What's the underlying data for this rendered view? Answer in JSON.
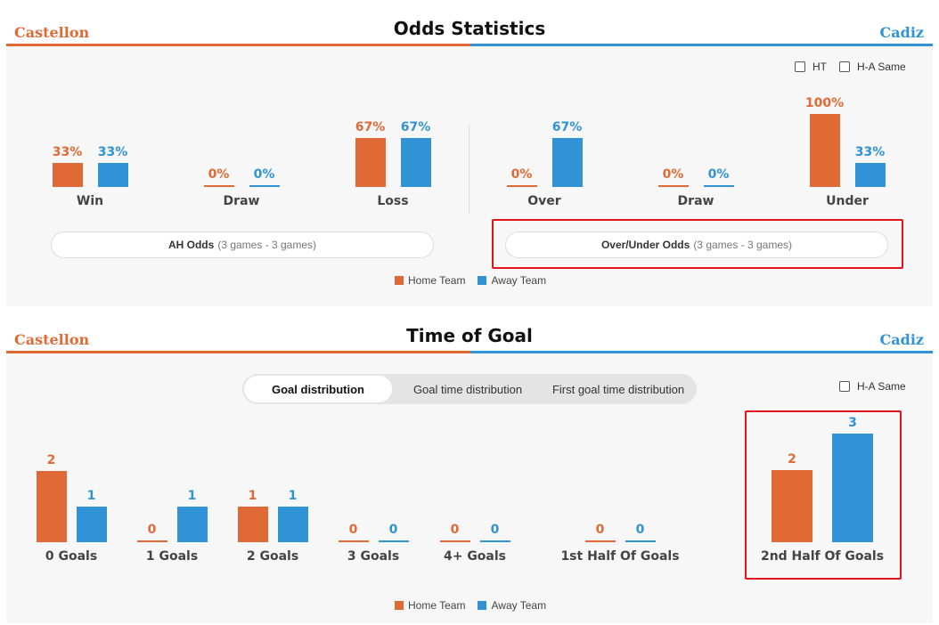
{
  "odds": {
    "home_team": "Castellon",
    "title": "Odds Statistics",
    "away_team": "Cadiz",
    "checkbox_ht": "HT",
    "checkbox_ha": "H-A Same",
    "ah_groups": [
      {
        "label": "Win",
        "home": "33%",
        "away": "33%",
        "home_pct": 33,
        "away_pct": 33
      },
      {
        "label": "Draw",
        "home": "0%",
        "away": "0%",
        "home_pct": 0,
        "away_pct": 0
      },
      {
        "label": "Loss",
        "home": "67%",
        "away": "67%",
        "home_pct": 67,
        "away_pct": 67
      }
    ],
    "ou_groups": [
      {
        "label": "Over",
        "home": "0%",
        "away": "67%",
        "home_pct": 0,
        "away_pct": 67
      },
      {
        "label": "Draw",
        "home": "0%",
        "away": "0%",
        "home_pct": 0,
        "away_pct": 0
      },
      {
        "label": "Under",
        "home": "100%",
        "away": "33%",
        "home_pct": 100,
        "away_pct": 33
      }
    ],
    "ah_button": {
      "bold": "AH Odds",
      "sub": "(3 games - 3 games)"
    },
    "ou_button": {
      "bold": "Over/Under Odds",
      "sub": "(3 games - 3 games)"
    },
    "legend_home": "Home Team",
    "legend_away": "Away Team"
  },
  "goal": {
    "home_team": "Castellon",
    "title": "Time of Goal",
    "away_team": "Cadiz",
    "tabs": [
      "Goal distribution",
      "Goal time distribution",
      "First goal time distribution"
    ],
    "active_tab": "Goal distribution",
    "checkbox_ha": "H-A Same",
    "groups": [
      {
        "label": "0 Goals",
        "home": "2",
        "away": "1"
      },
      {
        "label": "1 Goals",
        "home": "0",
        "away": "1"
      },
      {
        "label": "2 Goals",
        "home": "1",
        "away": "1"
      },
      {
        "label": "3 Goals",
        "home": "0",
        "away": "0"
      },
      {
        "label": "4+ Goals",
        "home": "0",
        "away": "0"
      },
      {
        "label": "1st Half Of Goals",
        "home": "0",
        "away": "0"
      },
      {
        "label": "2nd Half Of Goals",
        "home": "2",
        "away": "3"
      }
    ],
    "legend_home": "Home Team",
    "legend_away": "Away Team"
  },
  "colors": {
    "home": "#e06a35",
    "away": "#2f93d6",
    "highlight": "#e2141b"
  }
}
